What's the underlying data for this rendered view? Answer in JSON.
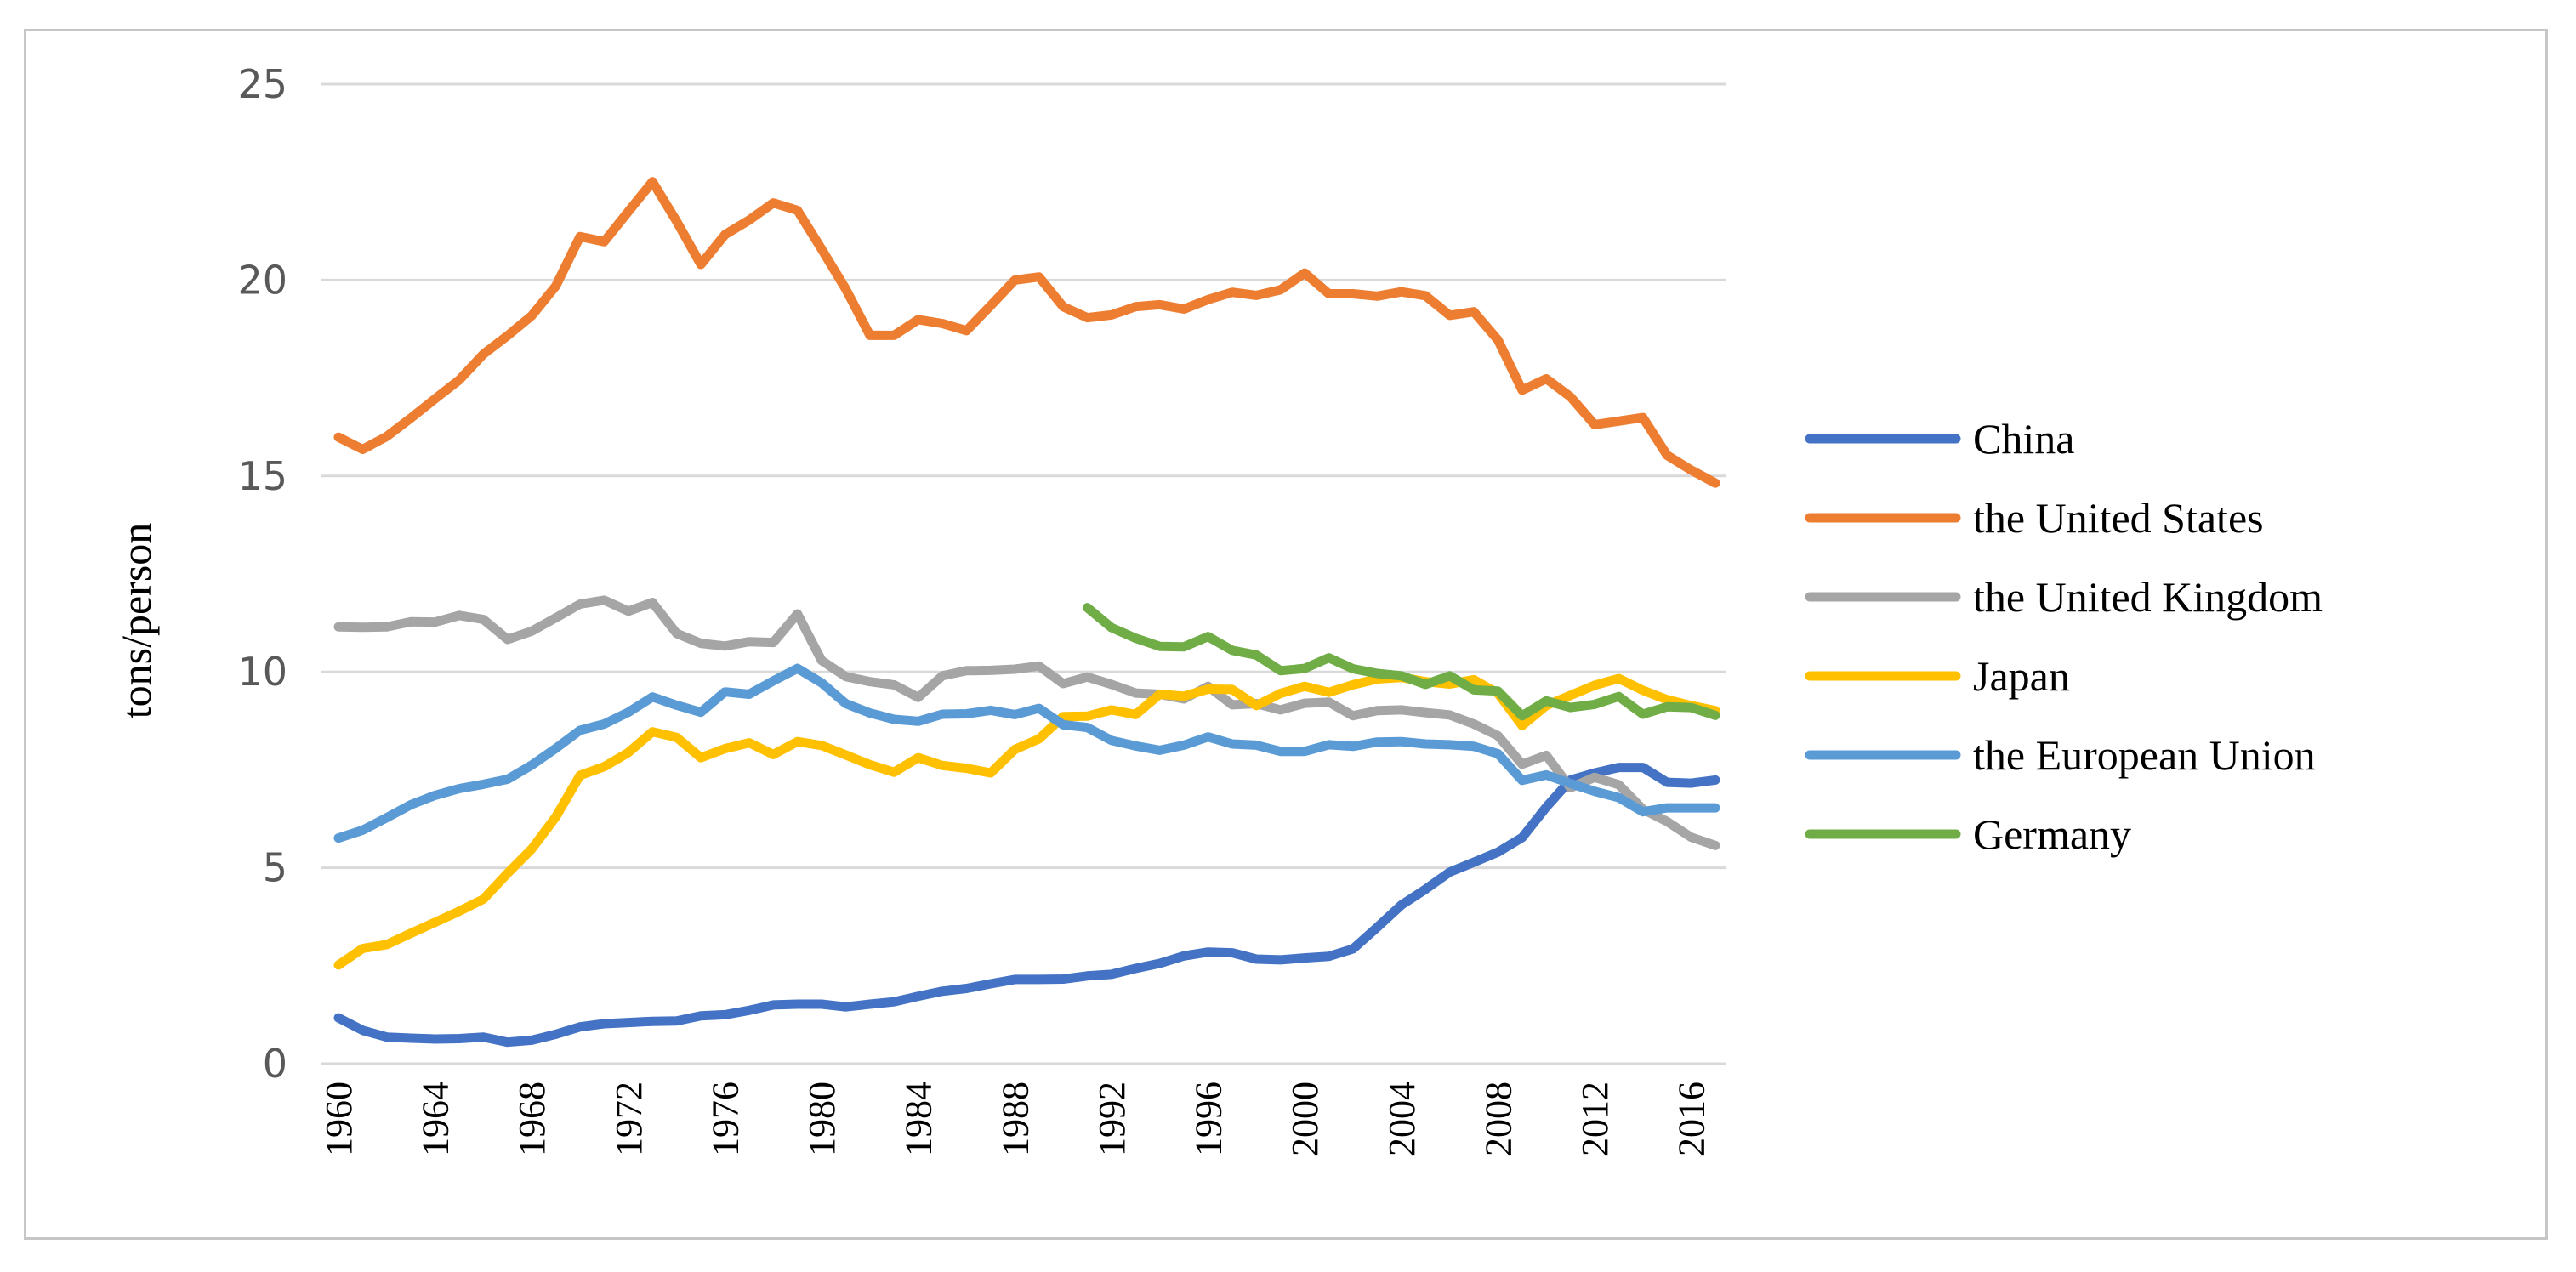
{
  "chart_data": {
    "type": "line",
    "title": "",
    "xlabel": "",
    "ylabel": "tons/person",
    "ylim": [
      0,
      25
    ],
    "xlim": [
      1960,
      2017
    ],
    "y_ticks": [
      0,
      5,
      10,
      15,
      20,
      25
    ],
    "y_tick_labels": [
      "0",
      "5",
      "10",
      "15",
      "20",
      "25"
    ],
    "x_ticks": [
      1960,
      1964,
      1968,
      1972,
      1976,
      1980,
      1984,
      1988,
      1992,
      1996,
      2000,
      2004,
      2008,
      2012,
      2016
    ],
    "x_tick_labels": [
      "1960",
      "1964",
      "1968",
      "1972",
      "1976",
      "1980",
      "1984",
      "1988",
      "1992",
      "1996",
      "2000",
      "2004",
      "2008",
      "2012",
      "2016"
    ],
    "grid": true,
    "legend_position": "right",
    "series": [
      {
        "name": "China",
        "color": "#4472c4",
        "start_year": 1960,
        "values": [
          1.17,
          0.85,
          0.68,
          0.65,
          0.63,
          0.64,
          0.68,
          0.55,
          0.6,
          0.75,
          0.94,
          1.02,
          1.05,
          1.08,
          1.09,
          1.22,
          1.25,
          1.36,
          1.5,
          1.52,
          1.52,
          1.45,
          1.52,
          1.58,
          1.72,
          1.85,
          1.92,
          2.04,
          2.15,
          2.15,
          2.16,
          2.24,
          2.28,
          2.43,
          2.56,
          2.75,
          2.85,
          2.83,
          2.67,
          2.65,
          2.7,
          2.74,
          2.93,
          3.48,
          4.05,
          4.45,
          4.89,
          5.14,
          5.4,
          5.77,
          6.55,
          7.24,
          7.42,
          7.56,
          7.56,
          7.18,
          7.16,
          7.24
        ]
      },
      {
        "name": "the United States",
        "color": "#ed7d31",
        "start_year": 1960,
        "values": [
          15.99,
          15.68,
          16.01,
          16.48,
          16.97,
          17.45,
          18.11,
          18.58,
          19.09,
          19.85,
          21.11,
          20.98,
          21.75,
          22.51,
          21.5,
          20.4,
          21.16,
          21.53,
          21.97,
          21.78,
          20.79,
          19.77,
          18.59,
          18.59,
          18.99,
          18.89,
          18.71,
          19.35,
          20.0,
          20.08,
          19.32,
          19.04,
          19.11,
          19.32,
          19.37,
          19.26,
          19.5,
          19.69,
          19.61,
          19.75,
          20.18,
          19.65,
          19.65,
          19.59,
          19.7,
          19.6,
          19.1,
          19.19,
          18.47,
          17.19,
          17.48,
          17.02,
          16.31,
          16.4,
          16.49,
          15.53,
          15.15,
          14.82
        ]
      },
      {
        "name": "the United Kingdom",
        "color": "#a5a5a5",
        "start_year": 1960,
        "values": [
          11.15,
          11.14,
          11.15,
          11.28,
          11.27,
          11.44,
          11.34,
          10.83,
          11.04,
          11.38,
          11.73,
          11.83,
          11.55,
          11.77,
          10.98,
          10.73,
          10.66,
          10.77,
          10.75,
          11.48,
          10.29,
          9.88,
          9.75,
          9.67,
          9.35,
          9.9,
          10.03,
          10.04,
          10.07,
          10.15,
          9.7,
          9.87,
          9.68,
          9.46,
          9.43,
          9.31,
          9.63,
          9.16,
          9.19,
          9.03,
          9.2,
          9.23,
          8.88,
          9.01,
          9.03,
          8.96,
          8.9,
          8.67,
          8.37,
          7.64,
          7.87,
          7.04,
          7.31,
          7.12,
          6.49,
          6.18,
          5.78,
          5.57
        ]
      },
      {
        "name": "Japan",
        "color": "#ffc000",
        "start_year": 1960,
        "values": [
          2.52,
          2.94,
          3.04,
          3.33,
          3.61,
          3.89,
          4.2,
          4.86,
          5.48,
          6.3,
          7.36,
          7.58,
          7.94,
          8.47,
          8.33,
          7.81,
          8.04,
          8.19,
          7.89,
          8.22,
          8.12,
          7.88,
          7.63,
          7.44,
          7.81,
          7.61,
          7.54,
          7.42,
          8.02,
          8.29,
          8.86,
          8.87,
          9.03,
          8.91,
          9.43,
          9.38,
          9.56,
          9.55,
          9.14,
          9.45,
          9.63,
          9.48,
          9.67,
          9.82,
          9.86,
          9.75,
          9.69,
          9.8,
          9.45,
          8.63,
          9.14,
          9.4,
          9.66,
          9.83,
          9.53,
          9.29,
          9.14,
          9.01
        ]
      },
      {
        "name": "the European Union",
        "color": "#5b9bd5",
        "start_year": 1960,
        "values": [
          5.76,
          5.96,
          6.28,
          6.61,
          6.85,
          7.02,
          7.13,
          7.26,
          7.62,
          8.05,
          8.51,
          8.67,
          8.97,
          9.36,
          9.15,
          8.97,
          9.49,
          9.43,
          9.77,
          10.09,
          9.72,
          9.19,
          8.95,
          8.79,
          8.74,
          8.92,
          8.93,
          9.02,
          8.91,
          9.07,
          8.65,
          8.58,
          8.25,
          8.11,
          8.0,
          8.13,
          8.34,
          8.16,
          8.13,
          7.97,
          7.97,
          8.14,
          8.1,
          8.21,
          8.22,
          8.16,
          8.14,
          8.1,
          7.91,
          7.23,
          7.37,
          7.15,
          6.95,
          6.79,
          6.43,
          6.53,
          6.53,
          6.53
        ]
      },
      {
        "name": "Germany",
        "color": "#70ad47",
        "start_year": 1991,
        "values": [
          11.64,
          11.13,
          10.86,
          10.65,
          10.64,
          10.9,
          10.55,
          10.43,
          10.03,
          10.09,
          10.36,
          10.08,
          9.96,
          9.9,
          9.68,
          9.9,
          9.54,
          9.51,
          8.88,
          9.26,
          9.09,
          9.17,
          9.37,
          8.92,
          9.11,
          9.09,
          8.89
        ]
      }
    ]
  }
}
